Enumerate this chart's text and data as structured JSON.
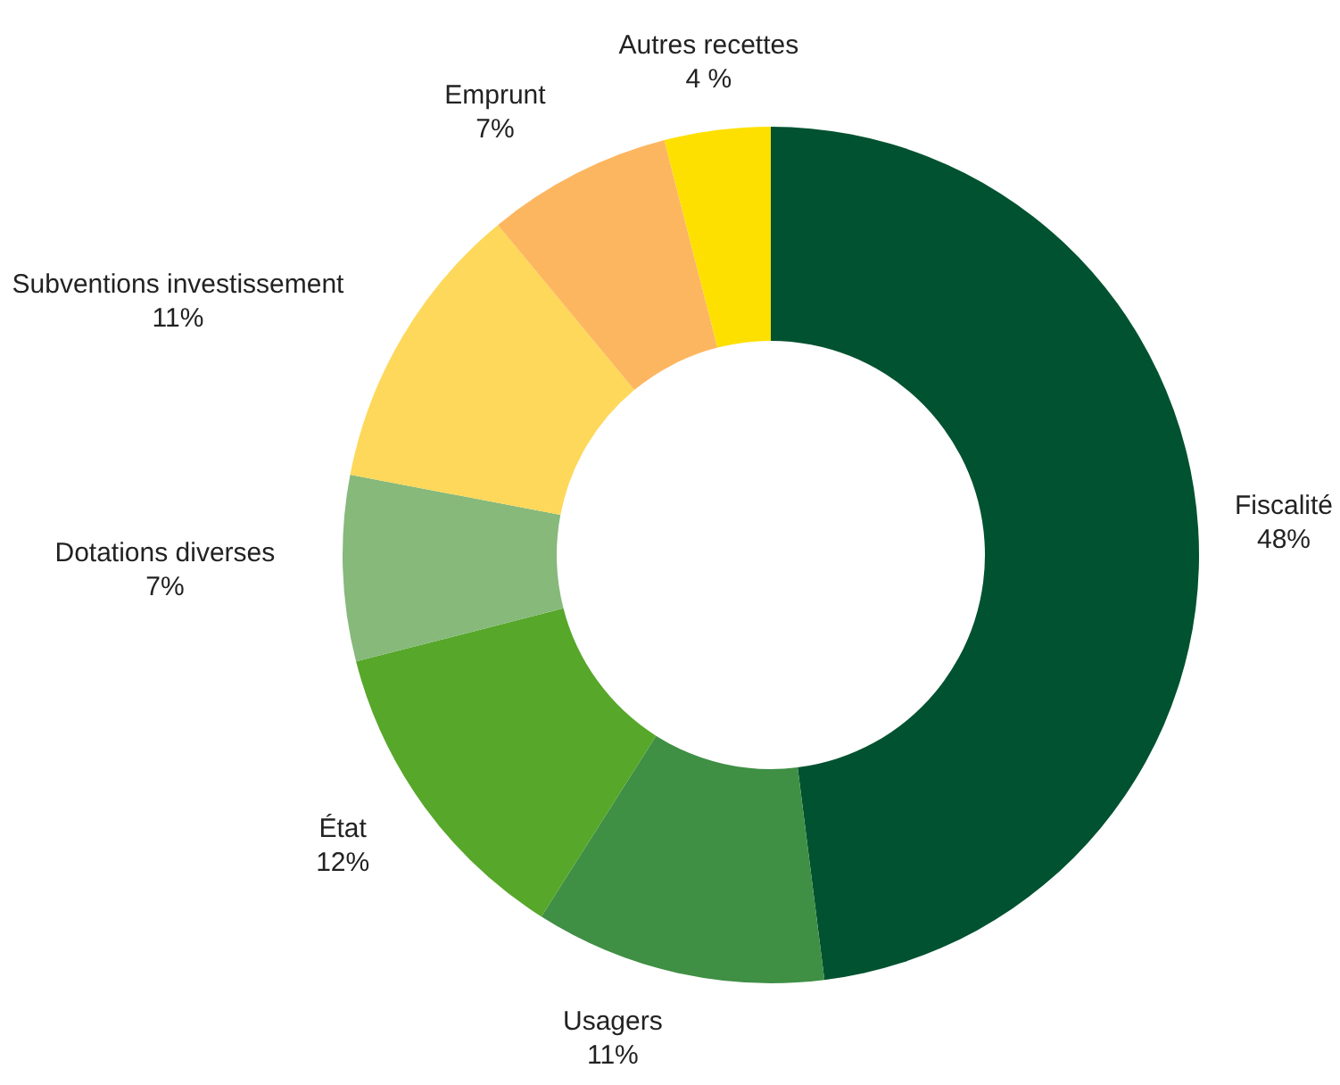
{
  "chart_data": {
    "type": "donut",
    "categories": [
      "Fiscalité",
      "Usagers",
      "État",
      "Dotations diverses",
      "Subventions investissement",
      "Emprunt",
      "Autres recettes"
    ],
    "values": [
      48,
      11,
      12,
      7,
      11,
      7,
      4
    ],
    "value_labels": [
      "48%",
      "11%",
      "12%",
      "7%",
      "11%",
      "7%",
      "4 %"
    ],
    "colors": [
      "#005230",
      "#3f8f45",
      "#57a72a",
      "#86b97a",
      "#fdd85a",
      "#fdb660",
      "#fde000"
    ],
    "legend": false
  }
}
